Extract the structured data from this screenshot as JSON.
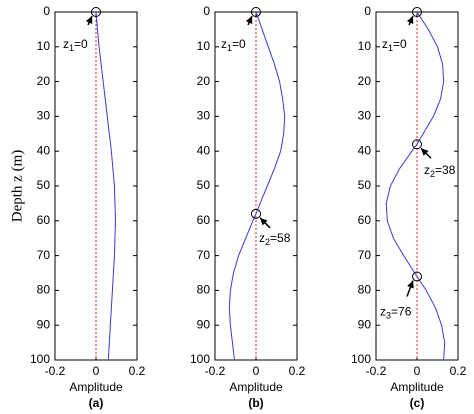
{
  "chart_data": [
    {
      "type": "line",
      "caption": "(a)",
      "xlabel": "Amplitude",
      "ylabel": "Depth z (m)",
      "xlim": [
        -0.2,
        0.2
      ],
      "xticks": [
        -0.2,
        0,
        0.2
      ],
      "ylim": [
        0,
        100
      ],
      "y_inverted": true,
      "yticks": [
        0,
        10,
        20,
        30,
        40,
        50,
        60,
        70,
        80,
        90,
        100
      ],
      "color": "#3a3ad6",
      "zero_line_color": "#e02020",
      "y": [
        0,
        10,
        20,
        30,
        40,
        50,
        60,
        70,
        80,
        90,
        100
      ],
      "values": [
        0,
        0.015,
        0.035,
        0.055,
        0.075,
        0.09,
        0.095,
        0.09,
        0.08,
        0.07,
        0.06
      ],
      "annotations": [
        {
          "name": "z",
          "index": "1",
          "value": 0,
          "value_label": "=0"
        }
      ]
    },
    {
      "type": "line",
      "caption": "(b)",
      "xlabel": "Amplitude",
      "xlim": [
        -0.2,
        0.2
      ],
      "xticks": [
        -0.2,
        0,
        0.2
      ],
      "ylim": [
        0,
        100
      ],
      "y_inverted": true,
      "yticks": [
        0,
        10,
        20,
        30,
        40,
        50,
        60,
        70,
        80,
        90,
        100
      ],
      "color": "#3a3ad6",
      "zero_line_color": "#e02020",
      "y": [
        0,
        5,
        10,
        15,
        20,
        25,
        30,
        35,
        40,
        45,
        50,
        55,
        58,
        60,
        65,
        70,
        75,
        80,
        85,
        90,
        95,
        100
      ],
      "values": [
        0,
        0.03,
        0.06,
        0.09,
        0.115,
        0.13,
        0.14,
        0.135,
        0.12,
        0.09,
        0.055,
        0.02,
        0,
        -0.015,
        -0.05,
        -0.085,
        -0.11,
        -0.125,
        -0.13,
        -0.125,
        -0.115,
        -0.105
      ],
      "annotations": [
        {
          "name": "z",
          "index": "1",
          "value": 0,
          "value_label": "=0"
        },
        {
          "name": "z",
          "index": "2",
          "value": 58,
          "value_label": "=58"
        }
      ]
    },
    {
      "type": "line",
      "caption": "(c)",
      "xlabel": "Amplitude",
      "xlim": [
        -0.2,
        0.2
      ],
      "xticks": [
        -0.2,
        0,
        0.2
      ],
      "ylim": [
        0,
        100
      ],
      "y_inverted": true,
      "yticks": [
        0,
        10,
        20,
        30,
        40,
        50,
        60,
        70,
        80,
        90,
        100
      ],
      "color": "#3a3ad6",
      "zero_line_color": "#e02020",
      "y": [
        0,
        5,
        10,
        15,
        20,
        25,
        30,
        35,
        38,
        40,
        45,
        50,
        55,
        60,
        65,
        70,
        76,
        80,
        85,
        90,
        95,
        100
      ],
      "values": [
        0,
        0.055,
        0.1,
        0.125,
        0.13,
        0.115,
        0.08,
        0.03,
        0,
        -0.025,
        -0.085,
        -0.13,
        -0.15,
        -0.145,
        -0.115,
        -0.065,
        0,
        0.045,
        0.09,
        0.12,
        0.135,
        0.13
      ],
      "annotations": [
        {
          "name": "z",
          "index": "1",
          "value": 0,
          "value_label": "=0"
        },
        {
          "name": "z",
          "index": "2",
          "value": 38,
          "value_label": "=38"
        },
        {
          "name": "z",
          "index": "3",
          "value": 76,
          "value_label": "=76"
        }
      ]
    }
  ]
}
